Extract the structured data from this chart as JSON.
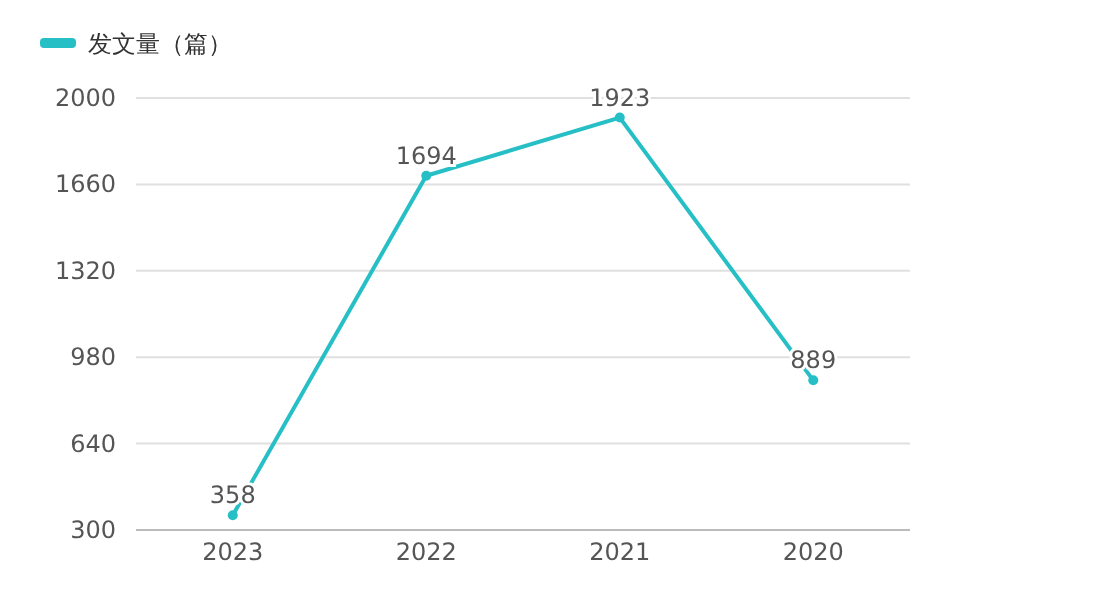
{
  "chart_data": {
    "type": "line",
    "categories": [
      "2023",
      "2022",
      "2021",
      "2020"
    ],
    "series": [
      {
        "name": "发文量（篇）",
        "color": "#26bfc6",
        "values": [
          358,
          1694,
          1923,
          889
        ]
      }
    ],
    "ylim": [
      300,
      2000
    ],
    "yticks": [
      300,
      640,
      980,
      1320,
      1660,
      2000
    ],
    "grid": "y",
    "legend": "top left",
    "marker": "circle",
    "line_style": "solid",
    "data_labels": true
  }
}
